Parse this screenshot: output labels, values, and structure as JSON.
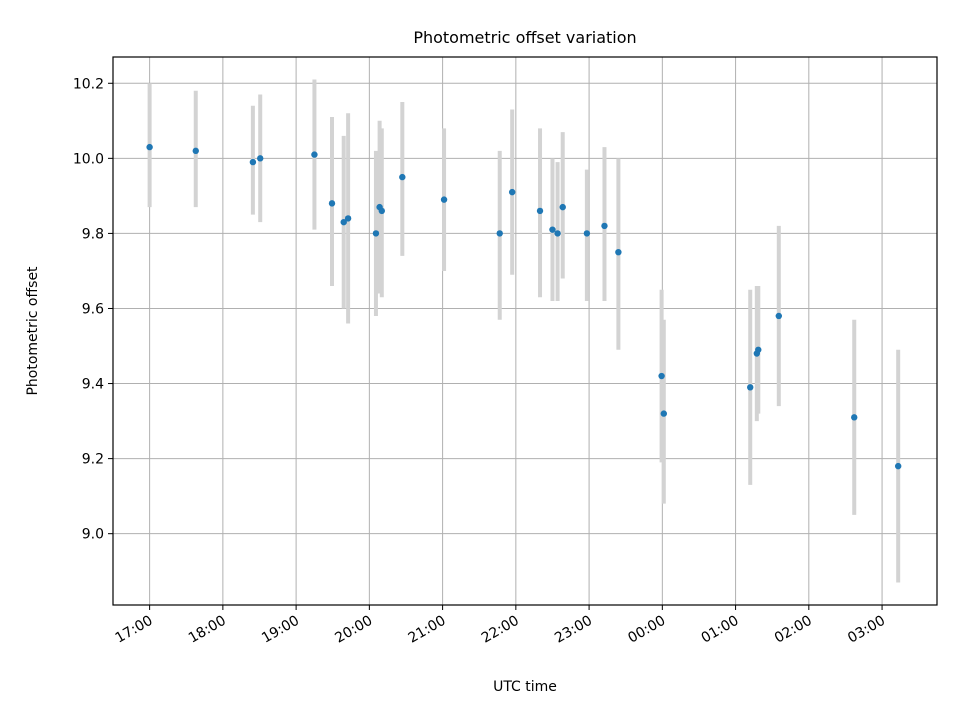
{
  "chart_data": {
    "type": "scatter",
    "title": "Photometric offset variation",
    "xlabel": "UTC time",
    "ylabel": "Photometric offset",
    "x_unit": "hours after 17:00 UTC",
    "xlim": [
      -0.5,
      10.75
    ],
    "ylim": [
      8.81,
      10.27
    ],
    "x_tick_labels": [
      "17:00",
      "18:00",
      "19:00",
      "20:00",
      "21:00",
      "22:00",
      "23:00",
      "00:00",
      "01:00",
      "02:00",
      "03:00"
    ],
    "x_ticks": [
      0,
      1,
      2,
      3,
      4,
      5,
      6,
      7,
      8,
      9,
      10
    ],
    "y_ticks": [
      9.0,
      9.2,
      9.4,
      9.6,
      9.8,
      10.0,
      10.2
    ],
    "y_tick_labels": [
      "9.0",
      "9.2",
      "9.4",
      "9.6",
      "9.8",
      "10.0",
      "10.2"
    ],
    "grid": true,
    "colors": {
      "point": "#1f77b4",
      "errorbar": "#d3d3d3",
      "grid": "#b0b0b0"
    },
    "points": [
      {
        "x": 0.0,
        "y": 10.03,
        "lo": 9.87,
        "hi": 10.2
      },
      {
        "x": 0.63,
        "y": 10.02,
        "lo": 9.87,
        "hi": 10.18
      },
      {
        "x": 1.41,
        "y": 9.99,
        "lo": 9.85,
        "hi": 10.14
      },
      {
        "x": 1.51,
        "y": 10.0,
        "lo": 9.83,
        "hi": 10.17
      },
      {
        "x": 2.25,
        "y": 10.01,
        "lo": 9.81,
        "hi": 10.21
      },
      {
        "x": 2.49,
        "y": 9.88,
        "lo": 9.66,
        "hi": 10.11
      },
      {
        "x": 2.65,
        "y": 9.83,
        "lo": 9.6,
        "hi": 10.06
      },
      {
        "x": 2.71,
        "y": 9.84,
        "lo": 9.56,
        "hi": 10.12
      },
      {
        "x": 3.09,
        "y": 9.8,
        "lo": 9.58,
        "hi": 10.02
      },
      {
        "x": 3.14,
        "y": 9.87,
        "lo": 9.64,
        "hi": 10.1
      },
      {
        "x": 3.17,
        "y": 9.86,
        "lo": 9.63,
        "hi": 10.08
      },
      {
        "x": 3.45,
        "y": 9.95,
        "lo": 9.74,
        "hi": 10.15
      },
      {
        "x": 4.02,
        "y": 9.89,
        "lo": 9.7,
        "hi": 10.08
      },
      {
        "x": 4.78,
        "y": 9.8,
        "lo": 9.57,
        "hi": 10.02
      },
      {
        "x": 4.95,
        "y": 9.91,
        "lo": 9.69,
        "hi": 10.13
      },
      {
        "x": 5.33,
        "y": 9.86,
        "lo": 9.63,
        "hi": 10.08
      },
      {
        "x": 5.5,
        "y": 9.81,
        "lo": 9.62,
        "hi": 10.0
      },
      {
        "x": 5.57,
        "y": 9.8,
        "lo": 9.62,
        "hi": 9.99
      },
      {
        "x": 5.64,
        "y": 9.87,
        "lo": 9.68,
        "hi": 10.07
      },
      {
        "x": 5.97,
        "y": 9.8,
        "lo": 9.62,
        "hi": 9.97
      },
      {
        "x": 6.21,
        "y": 9.82,
        "lo": 9.62,
        "hi": 10.03
      },
      {
        "x": 6.4,
        "y": 9.75,
        "lo": 9.49,
        "hi": 10.0
      },
      {
        "x": 6.99,
        "y": 9.42,
        "lo": 9.19,
        "hi": 9.65
      },
      {
        "x": 7.02,
        "y": 9.32,
        "lo": 9.08,
        "hi": 9.57
      },
      {
        "x": 8.2,
        "y": 9.39,
        "lo": 9.13,
        "hi": 9.65
      },
      {
        "x": 8.29,
        "y": 9.48,
        "lo": 9.3,
        "hi": 9.66
      },
      {
        "x": 8.31,
        "y": 9.49,
        "lo": 9.32,
        "hi": 9.66
      },
      {
        "x": 8.59,
        "y": 9.58,
        "lo": 9.34,
        "hi": 9.82
      },
      {
        "x": 9.62,
        "y": 9.31,
        "lo": 9.05,
        "hi": 9.57
      },
      {
        "x": 10.22,
        "y": 9.18,
        "lo": 8.87,
        "hi": 9.49
      }
    ]
  }
}
